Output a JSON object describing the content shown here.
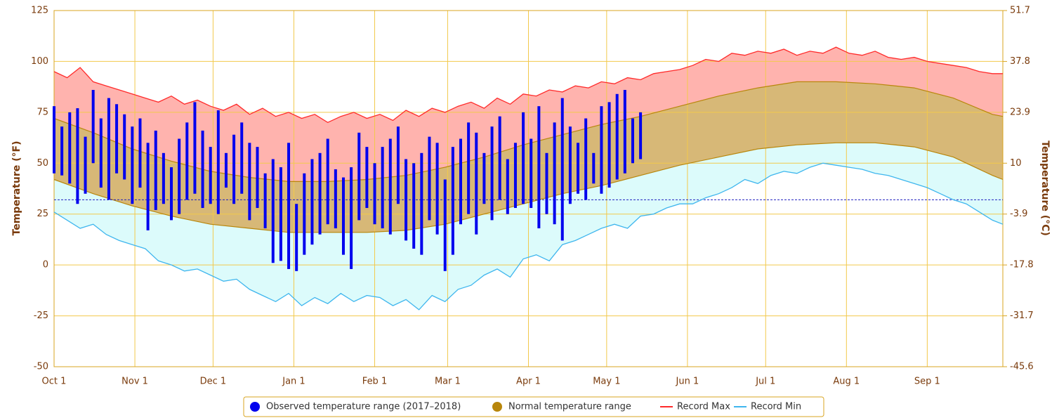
{
  "chart_data": {
    "type": "temperature-range",
    "y_label": "Temperature (°F)",
    "y2_label": "Temperature (°C)",
    "xlim": [
      0,
      364
    ],
    "xticks": [
      {
        "value": 0,
        "label": "Oct 1"
      },
      {
        "value": 31,
        "label": "Nov 1"
      },
      {
        "value": 61,
        "label": "Dec 1"
      },
      {
        "value": 92,
        "label": "Jan 1"
      },
      {
        "value": 123,
        "label": "Feb 1"
      },
      {
        "value": 151,
        "label": "Mar 1"
      },
      {
        "value": 182,
        "label": "Apr 1"
      },
      {
        "value": 212,
        "label": "May 1"
      },
      {
        "value": 243,
        "label": "Jun 1"
      },
      {
        "value": 273,
        "label": "Jul 1"
      },
      {
        "value": 304,
        "label": "Aug 1"
      },
      {
        "value": 335,
        "label": "Sep 1"
      }
    ],
    "ylim": [
      -50,
      125
    ],
    "yticks": [
      -50,
      -25,
      0,
      25,
      50,
      75,
      100,
      125
    ],
    "y2lim": [
      -45.6,
      51.7
    ],
    "y2ticks": [
      -45.6,
      -31.7,
      -17.8,
      -3.9,
      10,
      23.9,
      37.8,
      51.7
    ],
    "grid": true,
    "reference_line": 32,
    "series": [
      {
        "name": "Observed temperature range (2017–2018)",
        "color": "#0000ee",
        "x": [
          0,
          3,
          6,
          9,
          12,
          15,
          18,
          21,
          24,
          27,
          30,
          33,
          36,
          39,
          42,
          45,
          48,
          51,
          54,
          57,
          60,
          63,
          66,
          69,
          72,
          75,
          78,
          81,
          84,
          87,
          90,
          93,
          96,
          99,
          102,
          105,
          108,
          111,
          114,
          117,
          120,
          123,
          126,
          129,
          132,
          135,
          138,
          141,
          144,
          147,
          150,
          153,
          156,
          159,
          162,
          165,
          168,
          171,
          174,
          177,
          180,
          183,
          186,
          189,
          192,
          195,
          198,
          201,
          204,
          207,
          210,
          213,
          216,
          219,
          222,
          225
        ],
        "high": [
          78,
          68,
          75,
          77,
          63,
          86,
          72,
          82,
          79,
          74,
          68,
          72,
          60,
          66,
          55,
          48,
          62,
          70,
          80,
          66,
          58,
          76,
          55,
          64,
          70,
          60,
          58,
          45,
          52,
          48,
          60,
          30,
          45,
          52,
          55,
          62,
          47,
          43,
          48,
          65,
          58,
          50,
          58,
          62,
          68,
          52,
          50,
          55,
          63,
          60,
          42,
          58,
          62,
          70,
          65,
          55,
          68,
          73,
          52,
          60,
          75,
          62,
          78,
          55,
          70,
          82,
          68,
          60,
          72,
          55,
          78,
          80,
          84,
          86,
          72,
          75
        ],
        "low": [
          45,
          44,
          40,
          30,
          35,
          50,
          38,
          32,
          45,
          42,
          30,
          38,
          17,
          27,
          30,
          22,
          25,
          32,
          35,
          28,
          30,
          25,
          38,
          30,
          35,
          22,
          28,
          18,
          1,
          2,
          -2,
          -3,
          5,
          10,
          15,
          20,
          18,
          5,
          -2,
          22,
          28,
          20,
          18,
          15,
          30,
          12,
          8,
          5,
          22,
          15,
          -3,
          5,
          20,
          25,
          15,
          30,
          22,
          32,
          25,
          28,
          30,
          28,
          18,
          25,
          20,
          12,
          30,
          35,
          32,
          40,
          35,
          38,
          42,
          45,
          50,
          52
        ]
      },
      {
        "name": "Normal temperature range",
        "color": "#b8860b",
        "x": [
          0,
          15,
          30,
          45,
          60,
          75,
          90,
          105,
          120,
          135,
          150,
          165,
          180,
          195,
          210,
          225,
          240,
          255,
          270,
          285,
          300,
          315,
          330,
          345,
          360,
          364
        ],
        "high": [
          72,
          65,
          57,
          51,
          46,
          43,
          41,
          41,
          42,
          44,
          48,
          53,
          59,
          64,
          69,
          73,
          78,
          83,
          87,
          90,
          90,
          89,
          87,
          82,
          74,
          73
        ],
        "low": [
          42,
          35,
          29,
          24,
          20,
          18,
          16,
          16,
          16,
          17,
          20,
          25,
          30,
          35,
          39,
          44,
          49,
          53,
          57,
          59,
          60,
          60,
          58,
          53,
          44,
          42
        ]
      },
      {
        "name": "Record Max",
        "color": "#ff2a2a",
        "x": [
          0,
          5,
          10,
          15,
          20,
          25,
          30,
          35,
          40,
          45,
          50,
          55,
          60,
          65,
          70,
          75,
          80,
          85,
          90,
          95,
          100,
          105,
          110,
          115,
          120,
          125,
          130,
          135,
          140,
          145,
          150,
          155,
          160,
          165,
          170,
          175,
          180,
          185,
          190,
          195,
          200,
          205,
          210,
          215,
          220,
          225,
          230,
          235,
          240,
          245,
          250,
          255,
          260,
          265,
          270,
          275,
          280,
          285,
          290,
          295,
          300,
          305,
          310,
          315,
          320,
          325,
          330,
          335,
          340,
          345,
          350,
          355,
          360,
          364
        ],
        "values": [
          95,
          92,
          97,
          90,
          88,
          86,
          84,
          82,
          80,
          83,
          79,
          81,
          78,
          76,
          79,
          74,
          77,
          73,
          75,
          72,
          74,
          70,
          73,
          75,
          72,
          74,
          71,
          76,
          73,
          77,
          75,
          78,
          80,
          77,
          82,
          79,
          84,
          83,
          86,
          85,
          88,
          87,
          90,
          89,
          92,
          91,
          94,
          95,
          96,
          98,
          101,
          100,
          104,
          103,
          105,
          104,
          106,
          103,
          105,
          104,
          107,
          104,
          103,
          105,
          102,
          101,
          102,
          100,
          99,
          98,
          97,
          95,
          94,
          94
        ]
      },
      {
        "name": "Record Min",
        "color": "#3fb6ee",
        "x": [
          0,
          5,
          10,
          15,
          20,
          25,
          30,
          35,
          40,
          45,
          50,
          55,
          60,
          65,
          70,
          75,
          80,
          85,
          90,
          95,
          100,
          105,
          110,
          115,
          120,
          125,
          130,
          135,
          140,
          145,
          150,
          155,
          160,
          165,
          170,
          175,
          180,
          185,
          190,
          195,
          200,
          205,
          210,
          215,
          220,
          225,
          230,
          235,
          240,
          245,
          250,
          255,
          260,
          265,
          270,
          275,
          280,
          285,
          290,
          295,
          300,
          305,
          310,
          315,
          320,
          325,
          330,
          335,
          340,
          345,
          350,
          355,
          360,
          364
        ],
        "values": [
          26,
          22,
          18,
          20,
          15,
          12,
          10,
          8,
          2,
          0,
          -3,
          -2,
          -5,
          -8,
          -7,
          -12,
          -15,
          -18,
          -14,
          -20,
          -16,
          -19,
          -14,
          -18,
          -15,
          -16,
          -20,
          -17,
          -22,
          -15,
          -18,
          -12,
          -10,
          -5,
          -2,
          -6,
          3,
          5,
          2,
          10,
          12,
          15,
          18,
          20,
          18,
          24,
          25,
          28,
          30,
          30,
          33,
          35,
          38,
          42,
          40,
          44,
          46,
          45,
          48,
          50,
          49,
          48,
          47,
          45,
          44,
          42,
          40,
          38,
          35,
          32,
          30,
          26,
          22,
          20
        ]
      }
    ]
  }
}
